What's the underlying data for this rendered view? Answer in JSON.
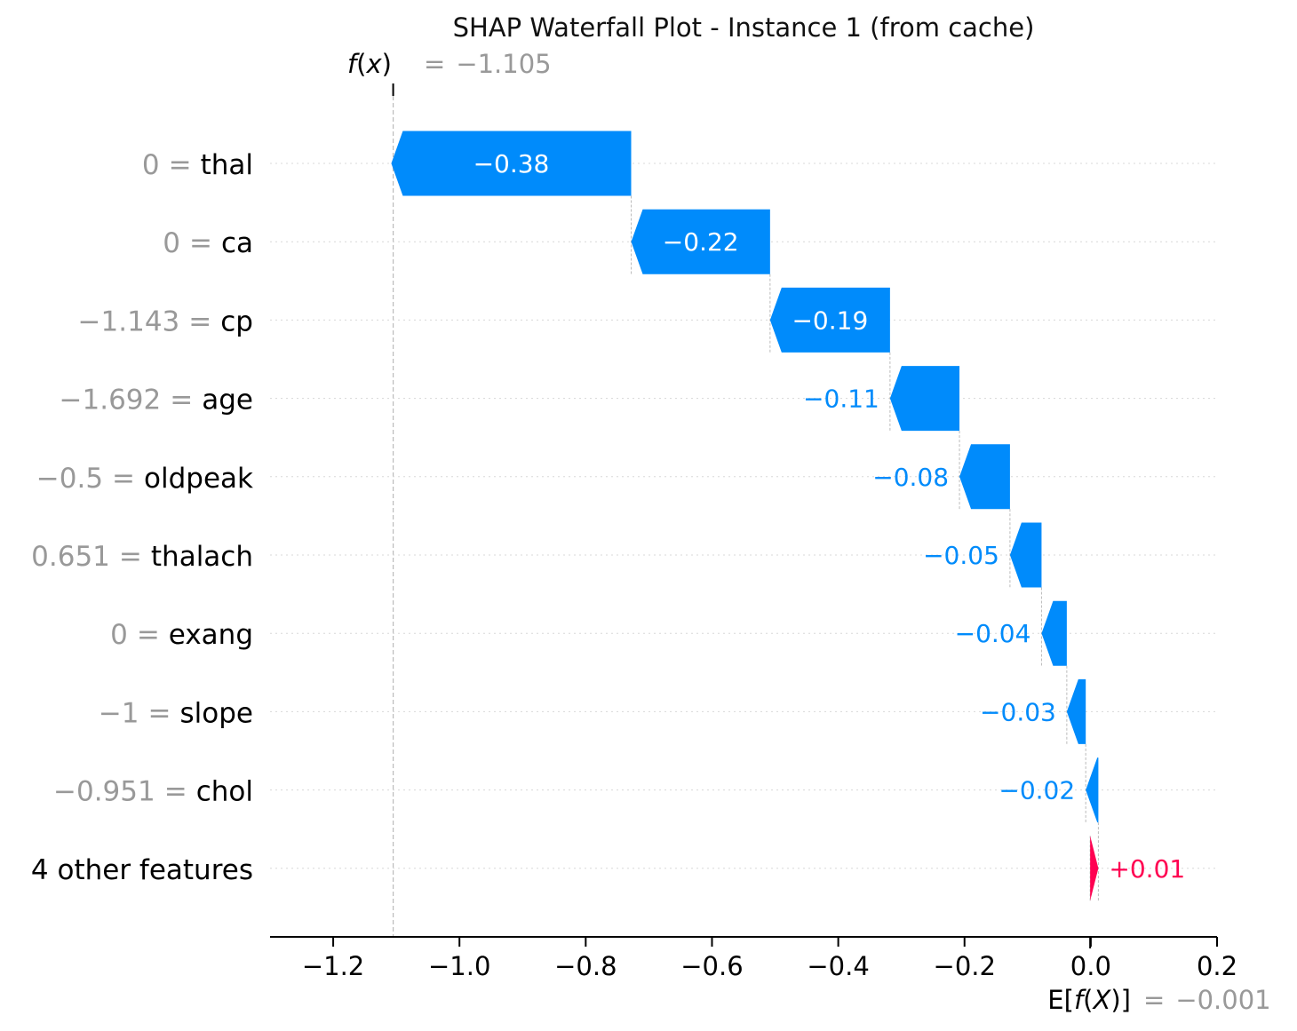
{
  "chart_data": {
    "type": "waterfall",
    "title": "SHAP Waterfall Plot - Instance 1 (from cache)",
    "fx": {
      "label_fn": "f",
      "label_arg": "x",
      "equals": "=",
      "value_text": "−1.105",
      "value": -1.105
    },
    "base": {
      "label_pre": "E[",
      "label_fn": "f",
      "label_arg": "X",
      "label_post": ")]",
      "equals": "=",
      "value_text": "−0.001",
      "value": -0.001
    },
    "rows": [
      {
        "feature_value": "0",
        "equals": "=",
        "feature": "thal",
        "shap": -0.38,
        "label": "−0.38"
      },
      {
        "feature_value": "0",
        "equals": "=",
        "feature": "ca",
        "shap": -0.22,
        "label": "−0.22"
      },
      {
        "feature_value": "−1.143",
        "equals": "=",
        "feature": "cp",
        "shap": -0.19,
        "label": "−0.19"
      },
      {
        "feature_value": "−1.692",
        "equals": "=",
        "feature": "age",
        "shap": -0.11,
        "label": "−0.11"
      },
      {
        "feature_value": "−0.5",
        "equals": "=",
        "feature": "oldpeak",
        "shap": -0.08,
        "label": "−0.08"
      },
      {
        "feature_value": "0.651",
        "equals": "=",
        "feature": "thalach",
        "shap": -0.05,
        "label": "−0.05"
      },
      {
        "feature_value": "0",
        "equals": "=",
        "feature": "exang",
        "shap": -0.04,
        "label": "−0.04"
      },
      {
        "feature_value": "−1",
        "equals": "=",
        "feature": "slope",
        "shap": -0.03,
        "label": "−0.03"
      },
      {
        "feature_value": "−0.951",
        "equals": "=",
        "feature": "chol",
        "shap": -0.02,
        "label": "−0.02"
      },
      {
        "feature_value": "",
        "equals": "",
        "feature": "4 other features",
        "shap": 0.013,
        "label": "+0.01"
      }
    ],
    "xlim": [
      -1.3,
      0.2
    ],
    "xticks": [
      -1.2,
      -1.0,
      -0.8,
      -0.6,
      -0.4,
      -0.2,
      0.0,
      0.2
    ],
    "xtick_labels": [
      "−1.2",
      "−1.0",
      "−0.8",
      "−0.6",
      "−0.4",
      "−0.2",
      "0.0",
      "0.2"
    ],
    "colors": {
      "negative": "#008bfb",
      "positive": "#ff0051",
      "muted": "#999999",
      "text": "#000000"
    }
  }
}
